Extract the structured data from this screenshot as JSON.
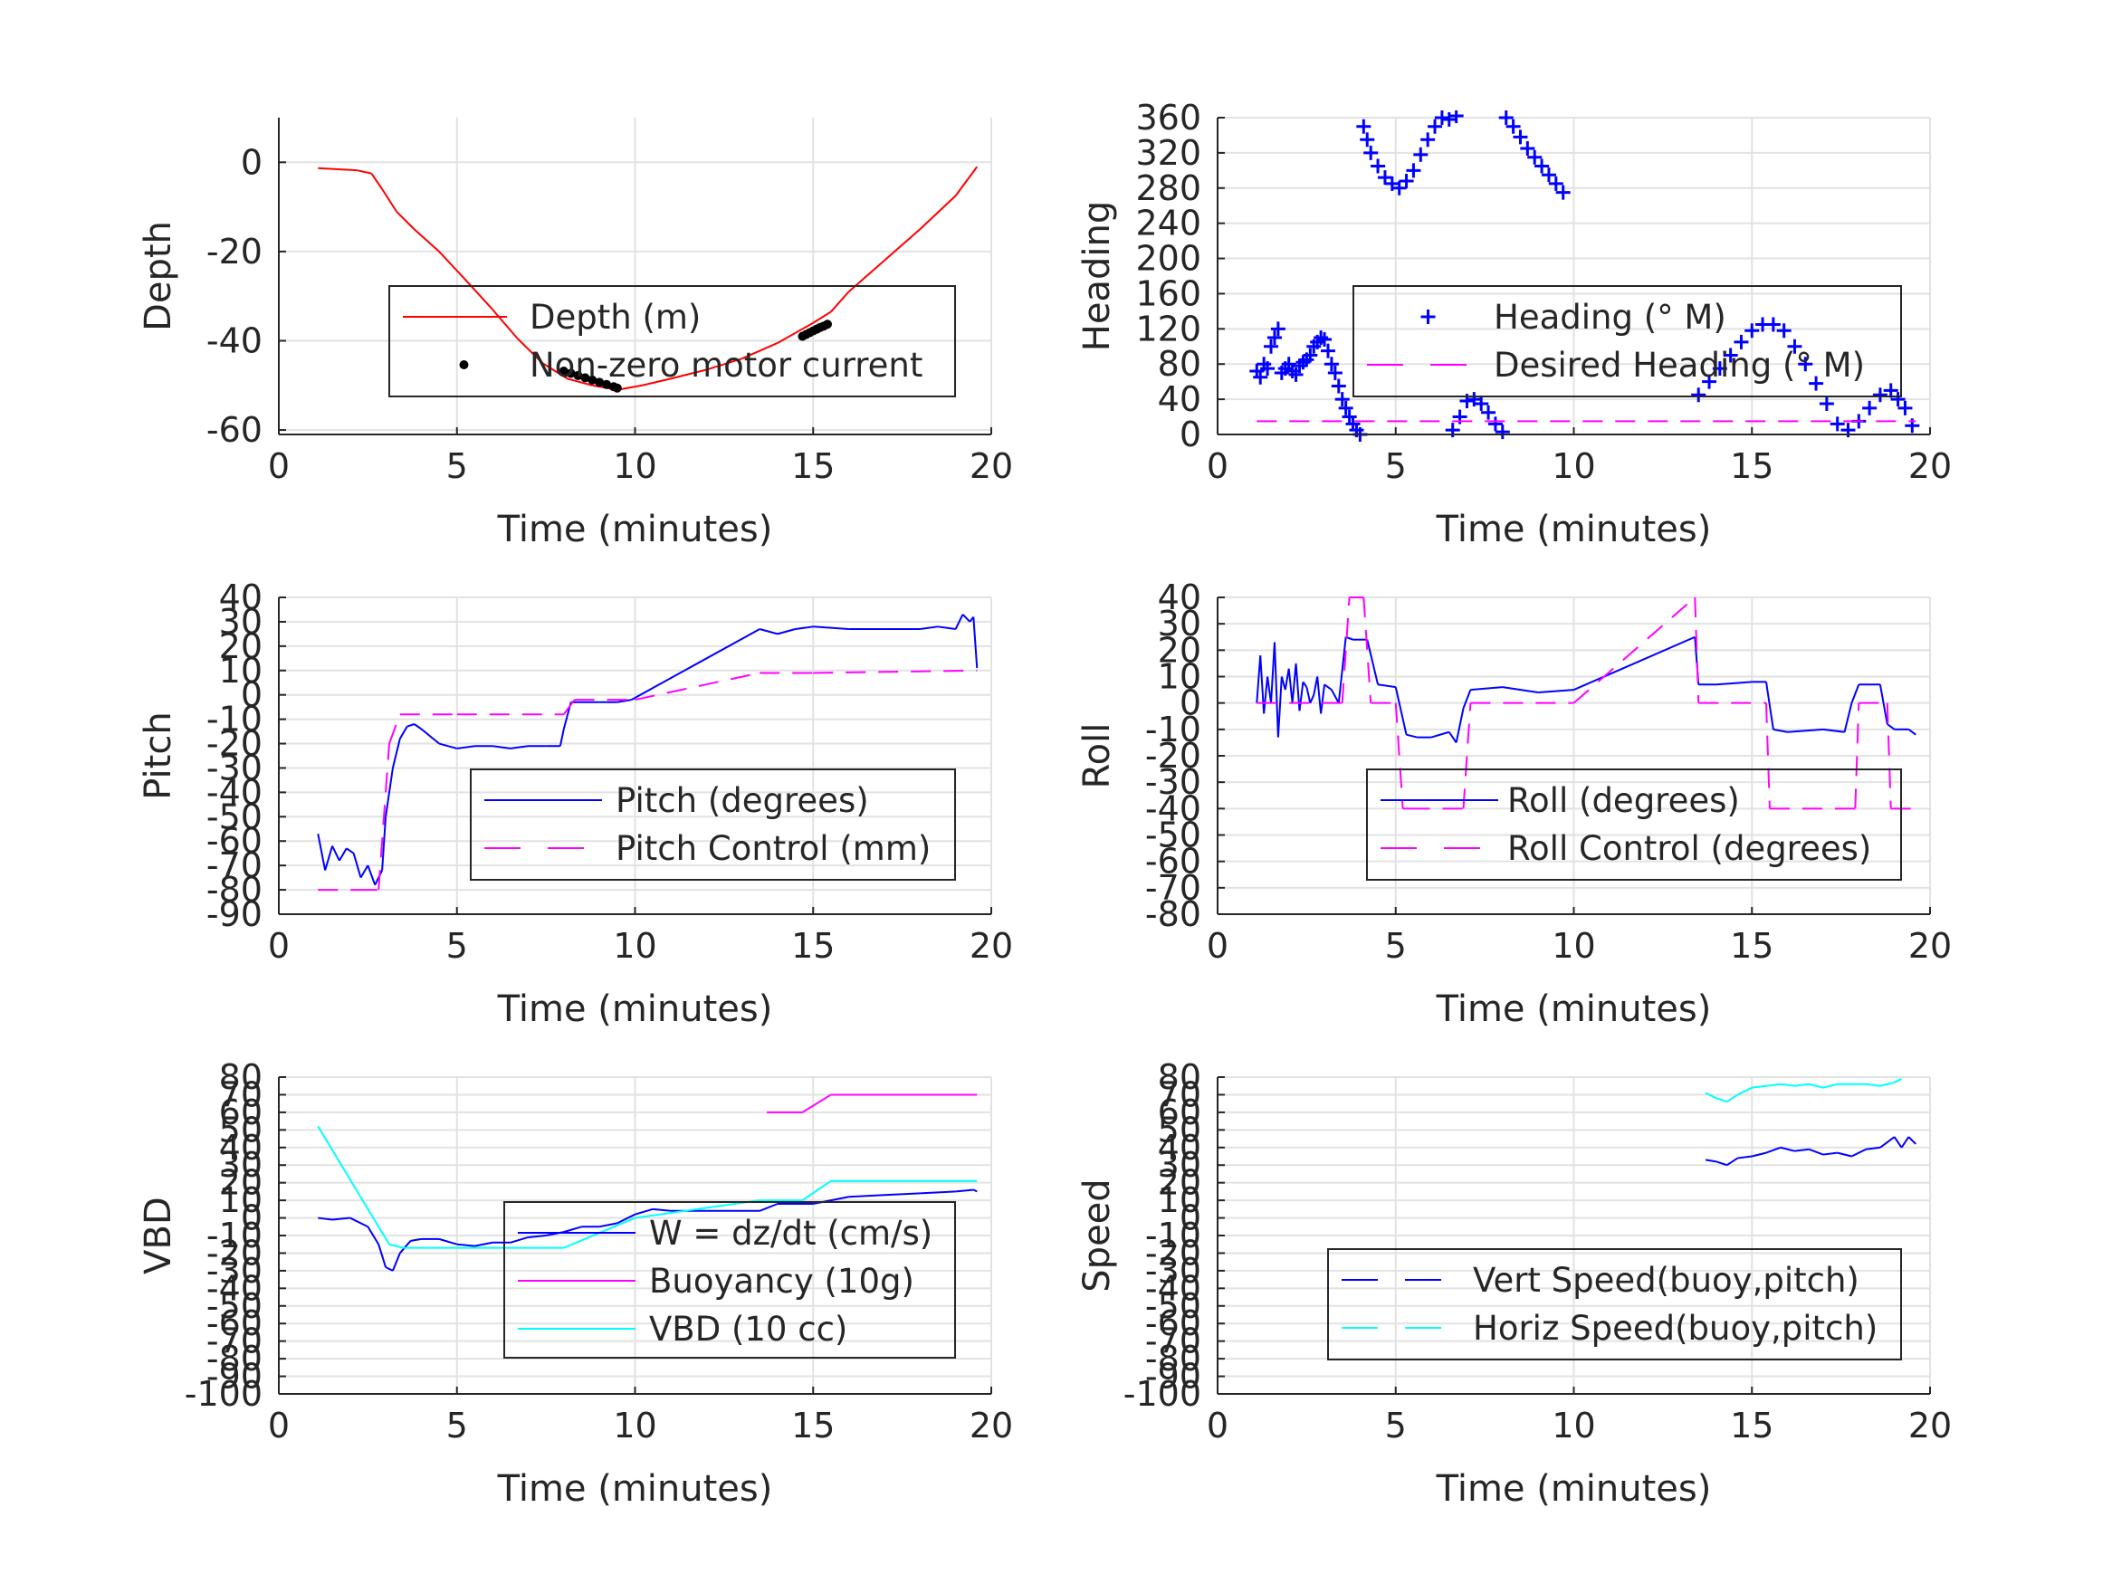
{
  "chart_data": [
    {
      "type": "line",
      "xlabel": "Time (minutes)",
      "ylabel": "Depth",
      "xlim": [
        0,
        20
      ],
      "ylim": [
        -61,
        10
      ],
      "xticks": [
        0,
        5,
        10,
        15,
        20
      ],
      "yticks": [
        0,
        -20,
        -40,
        -60
      ],
      "grid": true,
      "legend_position": "center-right",
      "series": [
        {
          "name": "Depth (m)",
          "color": "#ff0000",
          "style": "solid",
          "x": [
            1.1,
            2.2,
            2.6,
            2.9,
            3.3,
            3.8,
            4.5,
            5.2,
            6.0,
            6.7,
            7.4,
            8.1,
            8.8,
            9.5,
            10.2,
            11.0,
            12.0,
            13.0,
            14.0,
            15.0,
            15.5,
            16.0,
            17.0,
            18.0,
            19.0,
            19.6
          ],
          "y": [
            -1.3,
            -1.8,
            -2.5,
            -6.0,
            -11.0,
            -15.0,
            -20.0,
            -26.0,
            -33.0,
            -39.5,
            -45.0,
            -48.5,
            -50.0,
            -51.0,
            -50.0,
            -48.5,
            -46.5,
            -44.0,
            -40.5,
            -36.0,
            -33.5,
            -29.0,
            -22.0,
            -15.0,
            -7.5,
            -1.0
          ]
        },
        {
          "name": "Non-zero motor current",
          "color": "#000000",
          "style": "dots",
          "x": [
            8.0,
            8.2,
            8.4,
            8.6,
            8.8,
            9.0,
            9.2,
            9.4,
            9.5,
            14.7,
            14.8,
            14.9,
            15.0,
            15.1,
            15.2,
            15.3,
            15.4
          ],
          "y": [
            -46.8,
            -47.3,
            -47.8,
            -48.3,
            -48.8,
            -49.3,
            -49.8,
            -50.3,
            -50.6,
            -39.0,
            -38.6,
            -38.2,
            -37.8,
            -37.4,
            -37.0,
            -36.7,
            -36.3
          ]
        }
      ]
    },
    {
      "type": "scatter",
      "xlabel": "Time (minutes)",
      "ylabel": "Heading",
      "xlim": [
        0,
        20
      ],
      "ylim": [
        0,
        360
      ],
      "xticks": [
        0,
        5,
        10,
        15,
        20
      ],
      "yticks": [
        0,
        40,
        80,
        120,
        160,
        200,
        240,
        280,
        320,
        360
      ],
      "grid": true,
      "legend_position": "center-right",
      "series": [
        {
          "name": "Heading (° M)",
          "color": "#0000ff",
          "style": "plus",
          "x": [
            1.1,
            1.2,
            1.3,
            1.4,
            1.5,
            1.6,
            1.7,
            1.8,
            1.9,
            2.0,
            2.1,
            2.2,
            2.3,
            2.4,
            2.5,
            2.6,
            2.7,
            2.8,
            2.9,
            3.0,
            3.1,
            3.2,
            3.3,
            3.4,
            3.5,
            3.6,
            3.7,
            3.8,
            3.9,
            4.0,
            4.1,
            4.2,
            4.3,
            4.5,
            4.7,
            4.9,
            5.1,
            5.3,
            5.5,
            5.7,
            5.9,
            6.1,
            6.3,
            6.5,
            6.7,
            6.6,
            6.8,
            7.0,
            7.2,
            7.4,
            7.6,
            7.8,
            8.0,
            8.1,
            8.3,
            8.5,
            8.7,
            8.9,
            9.1,
            9.3,
            9.5,
            9.7,
            13.5,
            13.8,
            14.1,
            14.4,
            14.7,
            15.0,
            15.3,
            15.6,
            15.9,
            16.2,
            16.5,
            16.8,
            17.1,
            17.4,
            17.7,
            18.0,
            18.3,
            18.6,
            18.9,
            19.1,
            19.3,
            19.5
          ],
          "y": [
            72,
            65,
            80,
            75,
            100,
            110,
            120,
            70,
            75,
            80,
            72,
            68,
            78,
            82,
            85,
            90,
            100,
            105,
            110,
            108,
            95,
            80,
            70,
            55,
            40,
            30,
            20,
            12,
            5,
            0,
            350,
            335,
            320,
            305,
            292,
            285,
            280,
            288,
            300,
            318,
            335,
            350,
            360,
            358,
            362,
            5,
            20,
            38,
            40,
            35,
            25,
            12,
            3,
            360,
            350,
            338,
            325,
            315,
            305,
            295,
            285,
            275,
            45,
            60,
            75,
            90,
            105,
            118,
            125,
            125,
            118,
            100,
            80,
            58,
            35,
            12,
            5,
            15,
            30,
            45,
            50,
            40,
            30,
            10
          ]
        },
        {
          "name": "Desired Heading (° M)",
          "color": "#ff00ff",
          "style": "dash",
          "x": [
            1.1,
            19.6
          ],
          "y": [
            15,
            15
          ]
        }
      ]
    },
    {
      "type": "line",
      "xlabel": "Time (minutes)",
      "ylabel": "Pitch",
      "xlim": [
        0,
        20
      ],
      "ylim": [
        -90,
        40
      ],
      "xticks": [
        0,
        5,
        10,
        15,
        20
      ],
      "yticks": [
        40,
        30,
        20,
        10,
        0,
        -10,
        -20,
        -30,
        -40,
        -50,
        -60,
        -70,
        -80,
        -90
      ],
      "grid": true,
      "legend_position": "center-right",
      "series": [
        {
          "name": "Pitch (degrees)",
          "color": "#0000ff",
          "style": "solid",
          "x": [
            1.1,
            1.3,
            1.5,
            1.7,
            1.9,
            2.1,
            2.3,
            2.5,
            2.7,
            2.9,
            3.0,
            3.2,
            3.4,
            3.6,
            3.8,
            4.0,
            4.5,
            5.0,
            5.5,
            6.0,
            6.5,
            7.0,
            7.5,
            7.9,
            8.0,
            8.2,
            8.5,
            9.0,
            9.5,
            9.9,
            13.5,
            14.0,
            14.5,
            15.0,
            16.0,
            17.0,
            18.0,
            18.5,
            19.0,
            19.2,
            19.4,
            19.5,
            19.6
          ],
          "y": [
            -57,
            -72,
            -62,
            -68,
            -63,
            -65,
            -75,
            -70,
            -78,
            -72,
            -50,
            -30,
            -18,
            -13,
            -12,
            -14,
            -20,
            -22,
            -21,
            -21,
            -22,
            -21,
            -21,
            -21,
            -14,
            -3,
            -3,
            -3,
            -3,
            -2,
            27,
            25,
            27,
            28,
            27,
            27,
            27,
            28,
            27,
            33,
            30,
            32,
            11
          ]
        },
        {
          "name": "Pitch Control (mm)",
          "color": "#ff00ff",
          "style": "dash",
          "x": [
            1.1,
            2.2,
            2.8,
            3.1,
            3.4,
            5.0,
            8.0,
            8.3,
            10.0,
            13.5,
            15.0,
            19.6
          ],
          "y": [
            -80,
            -80,
            -80,
            -20,
            -8,
            -8,
            -8,
            -2,
            -2,
            9,
            9,
            10
          ]
        }
      ]
    },
    {
      "type": "line",
      "xlabel": "Time (minutes)",
      "ylabel": "Roll",
      "xlim": [
        0,
        20
      ],
      "ylim": [
        -80,
        40
      ],
      "xticks": [
        0,
        5,
        10,
        15,
        20
      ],
      "yticks": [
        40,
        30,
        20,
        10,
        0,
        -10,
        -20,
        -30,
        -40,
        -50,
        -60,
        -70,
        -80
      ],
      "grid": true,
      "legend_position": "center-right",
      "series": [
        {
          "name": "Roll (degrees)",
          "color": "#0000ff",
          "style": "solid",
          "x": [
            1.1,
            1.2,
            1.3,
            1.4,
            1.5,
            1.6,
            1.7,
            1.8,
            1.9,
            2.0,
            2.1,
            2.2,
            2.3,
            2.4,
            2.5,
            2.6,
            2.7,
            2.8,
            2.9,
            3.0,
            3.2,
            3.4,
            3.6,
            3.8,
            4.2,
            4.5,
            5.0,
            5.3,
            5.6,
            6.0,
            6.5,
            6.7,
            6.9,
            7.1,
            8.0,
            9.0,
            10.0,
            13.4,
            13.5,
            14.0,
            15.0,
            15.4,
            15.6,
            16.0,
            17.0,
            17.6,
            17.8,
            18.0,
            18.6,
            18.8,
            19.0,
            19.4,
            19.6
          ],
          "y": [
            0,
            18,
            -4,
            10,
            0,
            23,
            -13,
            10,
            5,
            13,
            0,
            15,
            -3,
            8,
            6,
            0,
            3,
            10,
            -4,
            7,
            5,
            0,
            25,
            24,
            24,
            7,
            6,
            -12,
            -13,
            -13,
            -11,
            -15,
            -2,
            5,
            6,
            4,
            5,
            25,
            7,
            7,
            8,
            8,
            -10,
            -11,
            -10,
            -11,
            0,
            7,
            7,
            -8,
            -10,
            -10,
            -12
          ]
        },
        {
          "name": "Roll Control (degrees)",
          "color": "#ff00ff",
          "style": "dash",
          "x": [
            1.1,
            3.5,
            3.7,
            4.1,
            4.3,
            5.0,
            5.2,
            5.4,
            6.9,
            7.1,
            10.0,
            13.4,
            13.5,
            15.4,
            15.5,
            17.9,
            18.0,
            18.8,
            18.9,
            19.6
          ],
          "y": [
            0,
            0,
            40,
            40,
            0,
            0,
            -40,
            -40,
            -40,
            0,
            0,
            40,
            0,
            0,
            -40,
            -40,
            0,
            0,
            -40,
            -40
          ]
        }
      ]
    },
    {
      "type": "line",
      "xlabel": "Time (minutes)",
      "ylabel": "VBD",
      "xlim": [
        0,
        20
      ],
      "ylim": [
        -100,
        80
      ],
      "xticks": [
        0,
        5,
        10,
        15,
        20
      ],
      "yticks": [
        80,
        70,
        60,
        50,
        40,
        30,
        20,
        10,
        0,
        -10,
        -20,
        -30,
        -40,
        -50,
        -60,
        -70,
        -80,
        -90,
        -100
      ],
      "grid": true,
      "legend_position": "center-right",
      "series": [
        {
          "name": "W = dz/dt (cm/s)",
          "color": "#0000ff",
          "style": "solid",
          "x": [
            1.1,
            1.5,
            2.0,
            2.5,
            2.8,
            3.0,
            3.2,
            3.4,
            3.7,
            4.0,
            4.5,
            5.0,
            5.5,
            6.0,
            6.5,
            7.0,
            7.5,
            8.0,
            8.5,
            9.0,
            9.5,
            10.0,
            10.5,
            11.0,
            12.0,
            13.0,
            13.5,
            14.0,
            15.0,
            16.0,
            17.0,
            18.0,
            19.0,
            19.5,
            19.6
          ],
          "y": [
            0,
            -1,
            0,
            -5,
            -15,
            -28,
            -30,
            -20,
            -13,
            -12,
            -12,
            -15,
            -16,
            -14,
            -14,
            -11,
            -10,
            -8,
            -5,
            -5,
            -3,
            2,
            5,
            4,
            4,
            4,
            4,
            8,
            8,
            12,
            13,
            14,
            15,
            16,
            15
          ]
        },
        {
          "name": "Buoyancy (10g)",
          "color": "#ff00ff",
          "style": "solid",
          "x": [
            13.7,
            14.7,
            15.5,
            19.6
          ],
          "y": [
            60,
            60,
            70,
            70
          ]
        },
        {
          "name": "VBD (10 cc)",
          "color": "#00ffff",
          "style": "solid",
          "x": [
            1.1,
            3.1,
            3.5,
            8.0,
            10.0,
            13.5,
            14.7,
            15.5,
            19.6
          ],
          "y": [
            52,
            -15,
            -17,
            -17,
            0,
            10,
            10,
            21,
            21
          ]
        }
      ]
    },
    {
      "type": "line",
      "xlabel": "Time (minutes)",
      "ylabel": "Speed",
      "xlim": [
        0,
        20
      ],
      "ylim": [
        -100,
        80
      ],
      "xticks": [
        0,
        5,
        10,
        15,
        20
      ],
      "yticks": [
        80,
        70,
        60,
        50,
        40,
        30,
        20,
        10,
        0,
        -10,
        -20,
        -30,
        -40,
        -50,
        -60,
        -70,
        -80,
        -90,
        -100
      ],
      "grid": true,
      "legend_position": "bottom-right",
      "series": [
        {
          "name": "Vert Speed(buoy,pitch)",
          "color": "#0000ff",
          "style": "dash",
          "x": [
            13.7,
            14.0,
            14.3,
            14.6,
            15.0,
            15.4,
            15.8,
            16.2,
            16.6,
            17.0,
            17.4,
            17.8,
            18.2,
            18.6,
            19.0,
            19.2,
            19.4,
            19.6
          ],
          "y": [
            33,
            32,
            30,
            34,
            35,
            37,
            40,
            38,
            39,
            36,
            37,
            35,
            39,
            40,
            46,
            40,
            46,
            42
          ]
        },
        {
          "name": "Horiz Speed(buoy,pitch)",
          "color": "#00ffff",
          "style": "dash",
          "x": [
            13.7,
            14.0,
            14.3,
            14.6,
            15.0,
            15.4,
            15.8,
            16.2,
            16.6,
            17.0,
            17.4,
            17.8,
            18.2,
            18.6,
            19.0,
            19.2
          ],
          "y": [
            71,
            68,
            66,
            70,
            74,
            75,
            76,
            75,
            76,
            74,
            76,
            76,
            76,
            75,
            77,
            79
          ]
        }
      ]
    }
  ]
}
